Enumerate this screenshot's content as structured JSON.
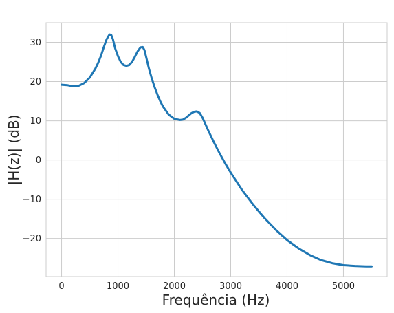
{
  "chart_data": {
    "type": "line",
    "title": "",
    "xlabel": "Frequência (Hz)",
    "ylabel": "|H(z)| (dB)",
    "xlim": [
      -275,
      5775
    ],
    "ylim": [
      -29.7,
      35
    ],
    "grid": true,
    "xticks": [
      0,
      1000,
      2000,
      3000,
      4000,
      5000
    ],
    "xtick_labels": [
      "0",
      "1000",
      "2000",
      "3000",
      "4000",
      "5000"
    ],
    "yticks": [
      30,
      20,
      10,
      0,
      -10,
      -20
    ],
    "ytick_labels": [
      "30",
      "20",
      "10",
      "0",
      "−10",
      "−20"
    ],
    "series": [
      {
        "color": "#1f77b4",
        "x": [
          0,
          100,
          200,
          300,
          400,
          500,
          600,
          650,
          700,
          750,
          800,
          850,
          880,
          910,
          950,
          1000,
          1050,
          1100,
          1150,
          1200,
          1250,
          1300,
          1350,
          1400,
          1440,
          1470,
          1500,
          1550,
          1600,
          1650,
          1700,
          1750,
          1800,
          1900,
          2000,
          2100,
          2150,
          2200,
          2250,
          2300,
          2350,
          2400,
          2450,
          2500,
          2550,
          2600,
          2700,
          2800,
          2900,
          3000,
          3200,
          3400,
          3600,
          3800,
          4000,
          4200,
          4400,
          4600,
          4800,
          5000,
          5200,
          5400,
          5500
        ],
        "y": [
          19.2,
          19.1,
          18.8,
          18.9,
          19.6,
          21.0,
          23.3,
          24.8,
          26.6,
          28.8,
          30.8,
          32.0,
          31.9,
          30.8,
          28.5,
          26.5,
          25.0,
          24.2,
          24.0,
          24.2,
          25.0,
          26.3,
          27.7,
          28.7,
          28.8,
          28.0,
          26.3,
          23.3,
          20.8,
          18.6,
          16.7,
          15.0,
          13.6,
          11.6,
          10.5,
          10.2,
          10.3,
          10.7,
          11.3,
          11.9,
          12.3,
          12.4,
          12.0,
          10.8,
          9.2,
          7.6,
          4.6,
          1.8,
          -0.8,
          -3.2,
          -7.6,
          -11.4,
          -14.8,
          -17.8,
          -20.4,
          -22.5,
          -24.2,
          -25.5,
          -26.3,
          -26.8,
          -27.0,
          -27.1,
          -27.1
        ]
      }
    ]
  }
}
